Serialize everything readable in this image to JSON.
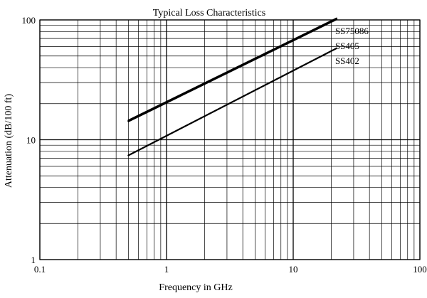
{
  "chart_data": {
    "type": "line",
    "title": "Typical Loss Characteristics",
    "xlabel": "Frequency in GHz",
    "ylabel": "Attenuation (dB/100 ft)",
    "xscale": "log",
    "yscale": "log",
    "xlim": [
      0.1,
      100
    ],
    "ylim": [
      1,
      100
    ],
    "x_ticks": [
      {
        "value": 0.1,
        "label": "0.1"
      },
      {
        "value": 1,
        "label": "1"
      },
      {
        "value": 10,
        "label": "10"
      },
      {
        "value": 100,
        "label": "100"
      }
    ],
    "y_ticks": [
      {
        "value": 1,
        "label": "1"
      },
      {
        "value": 10,
        "label": "10"
      },
      {
        "value": 100,
        "label": "100"
      }
    ],
    "grid": true,
    "series": [
      {
        "name": "SS75086",
        "x": [
          0.5,
          22
        ],
        "y": [
          14.5,
          103
        ],
        "color": "#000000"
      },
      {
        "name": "SS405",
        "x": [
          0.5,
          22
        ],
        "y": [
          14.2,
          101
        ],
        "color": "#000000"
      },
      {
        "name": "SS402",
        "x": [
          0.5,
          22
        ],
        "y": [
          7.4,
          58
        ],
        "color": "#000000"
      }
    ]
  }
}
